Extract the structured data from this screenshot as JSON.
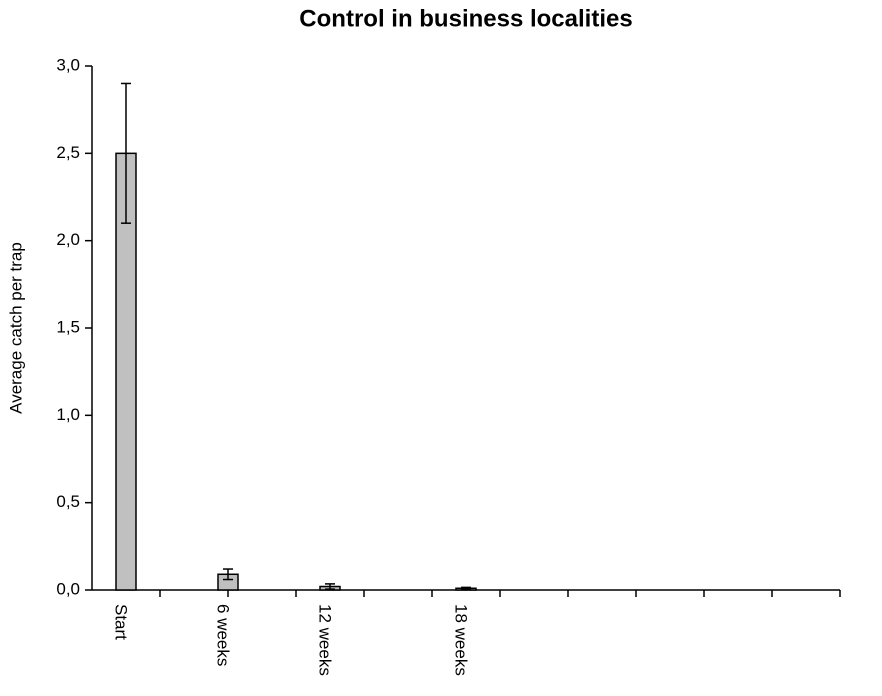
{
  "chart_data": {
    "type": "bar",
    "title": "Control in business localities",
    "y_label": "Average catch per trap",
    "categories": [
      "Start",
      null,
      null,
      "6 weeks",
      null,
      null,
      "12 weeks",
      null,
      null,
      null,
      "18 weeks",
      null,
      null,
      null,
      null,
      null,
      null,
      null,
      null,
      null,
      null
    ],
    "values": [
      2.5,
      null,
      null,
      0.09,
      null,
      null,
      0.02,
      null,
      null,
      null,
      0.01,
      null,
      null,
      null,
      null,
      null,
      null,
      null,
      null,
      null,
      null
    ],
    "errors": [
      0.4,
      null,
      null,
      0.03,
      null,
      null,
      0.015,
      null,
      null,
      null,
      0.005,
      null,
      null,
      null,
      null,
      null,
      null,
      null,
      null,
      null,
      null
    ],
    "color": "#c0c0c0",
    "ylim": [
      0,
      3
    ],
    "yticks": [
      {
        "value": 0,
        "label": "0,0"
      },
      {
        "value": 0.5,
        "label": "0,5"
      },
      {
        "value": 1,
        "label": "1,0"
      },
      {
        "value": 1.5,
        "label": "1,5"
      },
      {
        "value": 2,
        "label": "2,0"
      },
      {
        "value": 2.5,
        "label": "2,5"
      },
      {
        "value": 3,
        "label": "3,0"
      }
    ],
    "grid": false
  }
}
